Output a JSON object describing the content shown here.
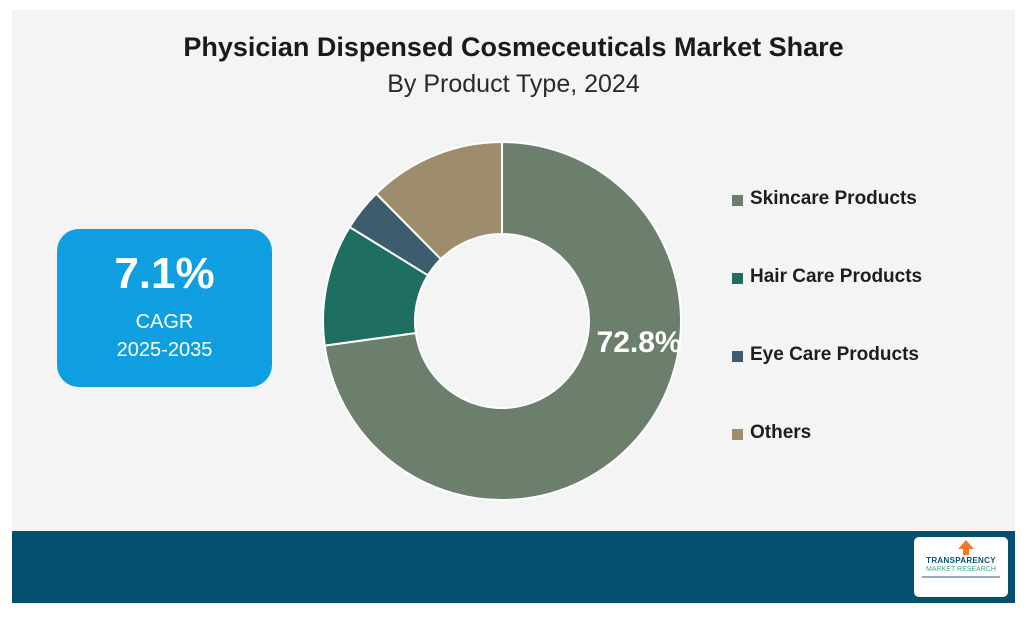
{
  "header": {
    "title": "Physician Dispensed Cosmeceuticals Market Share",
    "subtitle": "By Product Type, 2024"
  },
  "cagr": {
    "value": "7.1%",
    "label": "CAGR",
    "years": "2025-2035"
  },
  "logo": {
    "line1": "TRANSPARENCY",
    "line2": "MARKET RESEARCH"
  },
  "colors": {
    "background": "#f4f4f4",
    "cagr_box": "#0f9fe0",
    "footer": "#05506f"
  },
  "chart_data": {
    "type": "pie",
    "variant": "donut",
    "title": "Physician Dispensed Cosmeceuticals Market Share",
    "subtitle": "By Product Type, 2024",
    "legend_position": "right",
    "slices": [
      {
        "name": "Skincare Products",
        "value": 72.8,
        "color": "#6c7f6c",
        "label": "72.8%"
      },
      {
        "name": "Hair Care Products",
        "value": 11.0,
        "color": "#1f6e62",
        "label": ""
      },
      {
        "name": "Eye Care Products",
        "value": 3.8,
        "color": "#3d5d6e",
        "label": ""
      },
      {
        "name": "Others",
        "value": 12.4,
        "color": "#9e8d6c",
        "label": ""
      }
    ]
  }
}
